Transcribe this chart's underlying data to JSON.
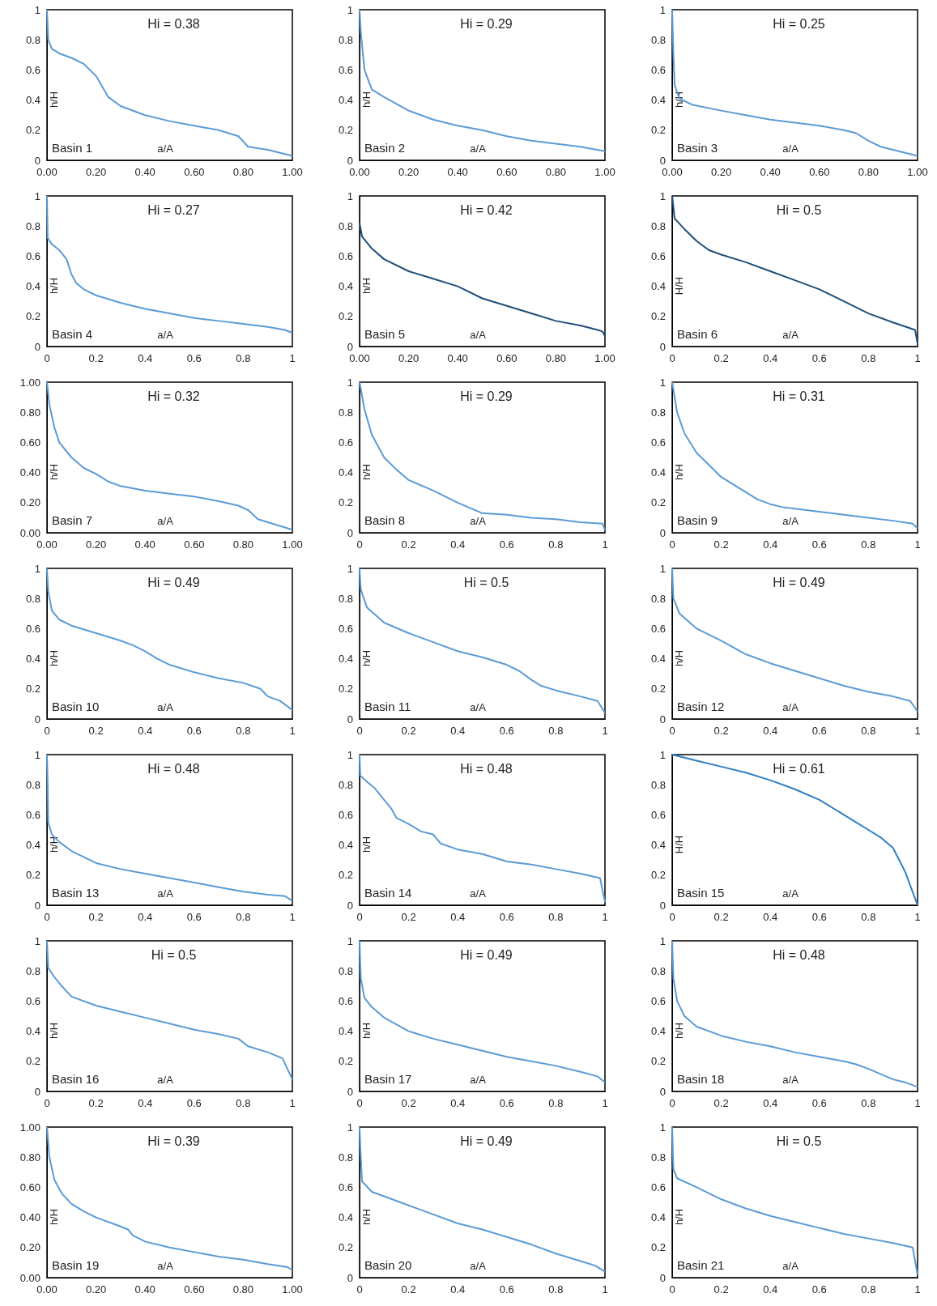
{
  "chart_data": [
    {
      "type": "line",
      "title": "Hi = 0.38",
      "annotations": [
        "Basin 1"
      ],
      "xlabel": "a/A",
      "ylabel": "h/H",
      "color": "#5b9bd5",
      "xlim": [
        0,
        1
      ],
      "ylim": [
        0,
        1
      ],
      "xticks": [
        {
          "value": 0,
          "label": "0.00"
        },
        {
          "value": 0.2,
          "label": "0.20"
        },
        {
          "value": 0.4,
          "label": "0.40"
        },
        {
          "value": 0.6,
          "label": "0.60"
        },
        {
          "value": 0.8,
          "label": "0.80"
        },
        {
          "value": 1,
          "label": "1.00"
        }
      ],
      "yticks": [
        0,
        0.2,
        0.4,
        0.6,
        0.8,
        1
      ],
      "x": [
        0,
        0.005,
        0.02,
        0.05,
        0.1,
        0.15,
        0.2,
        0.25,
        0.3,
        0.4,
        0.5,
        0.6,
        0.7,
        0.78,
        0.82,
        0.9,
        1
      ],
      "values": [
        1,
        0.8,
        0.74,
        0.71,
        0.68,
        0.64,
        0.56,
        0.42,
        0.36,
        0.3,
        0.26,
        0.23,
        0.2,
        0.16,
        0.09,
        0.07,
        0.03
      ]
    },
    {
      "type": "line",
      "title": "Hi = 0.29",
      "annotations": [
        "Basin 2"
      ],
      "xlabel": "a/A",
      "ylabel": "h/H",
      "color": "#5b9bd5",
      "xlim": [
        0,
        1
      ],
      "ylim": [
        0,
        1
      ],
      "xticks": [
        {
          "value": 0,
          "label": "0.00"
        },
        {
          "value": 0.2,
          "label": "0.20"
        },
        {
          "value": 0.4,
          "label": "0.40"
        },
        {
          "value": 0.6,
          "label": "0.60"
        },
        {
          "value": 0.8,
          "label": "0.80"
        },
        {
          "value": 1,
          "label": "1.00"
        }
      ],
      "yticks": [
        0,
        0.2,
        0.4,
        0.6,
        0.8,
        1
      ],
      "x": [
        0,
        0.005,
        0.02,
        0.05,
        0.1,
        0.2,
        0.3,
        0.4,
        0.5,
        0.6,
        0.7,
        0.8,
        0.9,
        1
      ],
      "values": [
        1,
        0.85,
        0.6,
        0.47,
        0.42,
        0.33,
        0.27,
        0.23,
        0.2,
        0.16,
        0.13,
        0.11,
        0.09,
        0.06
      ]
    },
    {
      "type": "line",
      "title": "Hi = 0.25",
      "annotations": [
        "Basin 3"
      ],
      "xlabel": "a/A",
      "ylabel": "h/H",
      "color": "#5b9bd5",
      "xlim": [
        0,
        1
      ],
      "ylim": [
        0,
        1
      ],
      "xticks": [
        {
          "value": 0,
          "label": "0.00"
        },
        {
          "value": 0.2,
          "label": "0.20"
        },
        {
          "value": 0.4,
          "label": "0.40"
        },
        {
          "value": 0.6,
          "label": "0.60"
        },
        {
          "value": 0.8,
          "label": "0.80"
        },
        {
          "value": 1,
          "label": "1.00"
        }
      ],
      "yticks": [
        0,
        0.2,
        0.4,
        0.6,
        0.8,
        1
      ],
      "x": [
        0,
        0.005,
        0.01,
        0.03,
        0.08,
        0.2,
        0.3,
        0.4,
        0.5,
        0.6,
        0.7,
        0.75,
        0.8,
        0.85,
        0.9,
        1
      ],
      "values": [
        1,
        0.7,
        0.5,
        0.41,
        0.37,
        0.33,
        0.3,
        0.27,
        0.25,
        0.23,
        0.2,
        0.18,
        0.13,
        0.09,
        0.07,
        0.03
      ]
    },
    {
      "type": "line",
      "title": "Hi = 0.27",
      "annotations": [
        "Basin 4"
      ],
      "xlabel": "a/A",
      "ylabel": "h/H",
      "color": "#5b9bd5",
      "xlim": [
        0,
        1
      ],
      "ylim": [
        0,
        1
      ],
      "xticks": [
        0,
        0.2,
        0.4,
        0.6,
        0.8,
        1
      ],
      "yticks": [
        0,
        0.2,
        0.4,
        0.6,
        0.8,
        1
      ],
      "x": [
        0,
        0.003,
        0.02,
        0.05,
        0.08,
        0.1,
        0.12,
        0.15,
        0.2,
        0.3,
        0.4,
        0.5,
        0.6,
        0.7,
        0.8,
        0.9,
        0.97,
        1
      ],
      "values": [
        1,
        0.72,
        0.68,
        0.64,
        0.58,
        0.48,
        0.42,
        0.38,
        0.34,
        0.29,
        0.25,
        0.22,
        0.19,
        0.17,
        0.15,
        0.13,
        0.11,
        0.09
      ]
    },
    {
      "type": "line",
      "title": "Hi = 0.42",
      "annotations": [
        "Basin 5"
      ],
      "xlabel": "a/A",
      "ylabel": "h/H",
      "color": "#1f4e79",
      "xlim": [
        0,
        1
      ],
      "ylim": [
        0,
        1
      ],
      "xticks": [
        {
          "value": 0,
          "label": "0.00"
        },
        {
          "value": 0.2,
          "label": "0.20"
        },
        {
          "value": 0.4,
          "label": "0.40"
        },
        {
          "value": 0.6,
          "label": "0.60"
        },
        {
          "value": 0.8,
          "label": "0.80"
        },
        {
          "value": 1,
          "label": "1.00"
        }
      ],
      "yticks": [
        0,
        0.2,
        0.4,
        0.6,
        0.8,
        1
      ],
      "x": [
        0,
        0.01,
        0.05,
        0.1,
        0.2,
        0.3,
        0.4,
        0.5,
        0.6,
        0.7,
        0.8,
        0.9,
        0.97,
        0.99,
        1
      ],
      "values": [
        0.82,
        0.73,
        0.65,
        0.58,
        0.5,
        0.45,
        0.4,
        0.32,
        0.27,
        0.22,
        0.17,
        0.14,
        0.11,
        0.1,
        0.07
      ]
    },
    {
      "type": "line",
      "title": "Hi = 0.5",
      "annotations": [
        "Basin 6"
      ],
      "xlabel": "a/A",
      "ylabel": "H/H",
      "color": "#1f4e79",
      "xlim": [
        0,
        1
      ],
      "ylim": [
        0,
        1
      ],
      "xticks": [
        0,
        0.2,
        0.4,
        0.6,
        0.8,
        1
      ],
      "yticks": [
        0,
        0.2,
        0.4,
        0.6,
        0.8,
        1
      ],
      "x": [
        0,
        0.01,
        0.05,
        0.1,
        0.15,
        0.2,
        0.3,
        0.4,
        0.5,
        0.6,
        0.7,
        0.8,
        0.9,
        0.99,
        1
      ],
      "values": [
        1,
        0.85,
        0.78,
        0.7,
        0.64,
        0.61,
        0.56,
        0.5,
        0.44,
        0.38,
        0.3,
        0.22,
        0.16,
        0.11,
        0.02
      ]
    },
    {
      "type": "line",
      "title": "Hi = 0.32",
      "annotations": [
        "Basin 7"
      ],
      "xlabel": "a/A",
      "ylabel": "h/H",
      "color": "#5b9bd5",
      "xlim": [
        0,
        1
      ],
      "ylim": [
        0,
        1
      ],
      "xticks": [
        {
          "value": 0,
          "label": "0.00"
        },
        {
          "value": 0.2,
          "label": "0.20"
        },
        {
          "value": 0.4,
          "label": "0.40"
        },
        {
          "value": 0.6,
          "label": "0.60"
        },
        {
          "value": 0.8,
          "label": "0.80"
        },
        {
          "value": 1,
          "label": "1.00"
        }
      ],
      "yticks": [
        {
          "value": 0,
          "label": "0.00"
        },
        {
          "value": 0.2,
          "label": "0.20"
        },
        {
          "value": 0.4,
          "label": "0.40"
        },
        {
          "value": 0.6,
          "label": "0.60"
        },
        {
          "value": 0.8,
          "label": "0.80"
        },
        {
          "value": 1,
          "label": "1.00"
        }
      ],
      "x": [
        0,
        0.01,
        0.03,
        0.05,
        0.1,
        0.15,
        0.2,
        0.25,
        0.3,
        0.4,
        0.5,
        0.6,
        0.7,
        0.78,
        0.82,
        0.86,
        0.9,
        1
      ],
      "values": [
        1,
        0.85,
        0.7,
        0.6,
        0.5,
        0.43,
        0.39,
        0.34,
        0.31,
        0.28,
        0.26,
        0.24,
        0.21,
        0.18,
        0.15,
        0.09,
        0.07,
        0.02
      ]
    },
    {
      "type": "line",
      "title": "Hi = 0.29",
      "annotations": [
        "Basin 8"
      ],
      "xlabel": "a/A",
      "ylabel": "h/H",
      "color": "#5b9bd5",
      "xlim": [
        0,
        1
      ],
      "ylim": [
        0,
        1
      ],
      "xticks": [
        0,
        0.2,
        0.4,
        0.6,
        0.8,
        1
      ],
      "yticks": [
        0,
        0.2,
        0.4,
        0.6,
        0.8,
        1
      ],
      "x": [
        0,
        0.02,
        0.05,
        0.1,
        0.15,
        0.2,
        0.3,
        0.4,
        0.5,
        0.6,
        0.7,
        0.8,
        0.9,
        0.99,
        1
      ],
      "values": [
        1,
        0.82,
        0.65,
        0.5,
        0.42,
        0.35,
        0.28,
        0.2,
        0.13,
        0.12,
        0.1,
        0.09,
        0.07,
        0.06,
        0.02
      ]
    },
    {
      "type": "line",
      "title": "Hi = 0.31",
      "annotations": [
        "Basin 9"
      ],
      "xlabel": "a/A",
      "ylabel": "h/H",
      "color": "#5b9bd5",
      "xlim": [
        0,
        1
      ],
      "ylim": [
        0,
        1
      ],
      "xticks": [
        0,
        0.2,
        0.4,
        0.6,
        0.8,
        1
      ],
      "yticks": [
        0,
        0.2,
        0.4,
        0.6,
        0.8,
        1
      ],
      "x": [
        0,
        0.02,
        0.05,
        0.1,
        0.15,
        0.2,
        0.3,
        0.35,
        0.4,
        0.45,
        0.5,
        0.6,
        0.7,
        0.8,
        0.9,
        0.98,
        1
      ],
      "values": [
        1,
        0.8,
        0.66,
        0.53,
        0.45,
        0.37,
        0.27,
        0.22,
        0.19,
        0.17,
        0.16,
        0.14,
        0.12,
        0.1,
        0.08,
        0.06,
        0.03
      ]
    },
    {
      "type": "line",
      "title": "Hi = 0.49",
      "annotations": [
        "Basin 10"
      ],
      "xlabel": "a/A",
      "ylabel": "h/H",
      "color": "#5b9bd5",
      "xlim": [
        0,
        1
      ],
      "ylim": [
        0,
        1
      ],
      "xticks": [
        0,
        0.2,
        0.4,
        0.6,
        0.8,
        1
      ],
      "yticks": [
        0,
        0.2,
        0.4,
        0.6,
        0.8,
        1
      ],
      "x": [
        0,
        0.005,
        0.02,
        0.05,
        0.1,
        0.2,
        0.3,
        0.35,
        0.4,
        0.45,
        0.5,
        0.6,
        0.7,
        0.8,
        0.87,
        0.9,
        0.95,
        1
      ],
      "values": [
        1,
        0.85,
        0.72,
        0.66,
        0.62,
        0.57,
        0.52,
        0.49,
        0.45,
        0.4,
        0.36,
        0.31,
        0.27,
        0.24,
        0.2,
        0.15,
        0.12,
        0.06
      ]
    },
    {
      "type": "line",
      "title": "Hi = 0.5",
      "annotations": [
        "Basin 11"
      ],
      "xlabel": "a/A",
      "ylabel": "h/H",
      "color": "#5b9bd5",
      "xlim": [
        0,
        1
      ],
      "ylim": [
        0,
        1
      ],
      "xticks": [
        0,
        0.2,
        0.4,
        0.6,
        0.8,
        1
      ],
      "yticks": [
        0,
        0.2,
        0.4,
        0.6,
        0.8,
        1
      ],
      "x": [
        0,
        0.005,
        0.03,
        0.1,
        0.2,
        0.3,
        0.4,
        0.5,
        0.6,
        0.65,
        0.7,
        0.74,
        0.8,
        0.9,
        0.97,
        1
      ],
      "values": [
        1,
        0.86,
        0.74,
        0.64,
        0.57,
        0.51,
        0.45,
        0.41,
        0.36,
        0.32,
        0.26,
        0.22,
        0.19,
        0.15,
        0.12,
        0.04
      ]
    },
    {
      "type": "line",
      "title": "Hi = 0.49",
      "annotations": [
        "Basin 12"
      ],
      "xlabel": "a/A",
      "ylabel": "h/H",
      "color": "#5b9bd5",
      "xlim": [
        0,
        1
      ],
      "ylim": [
        0,
        1
      ],
      "xticks": [
        0,
        0.2,
        0.4,
        0.6,
        0.8,
        1
      ],
      "yticks": [
        0,
        0.2,
        0.4,
        0.6,
        0.8,
        1
      ],
      "x": [
        0,
        0.005,
        0.03,
        0.1,
        0.2,
        0.3,
        0.4,
        0.5,
        0.6,
        0.7,
        0.8,
        0.9,
        0.97,
        1
      ],
      "values": [
        1,
        0.8,
        0.7,
        0.6,
        0.52,
        0.43,
        0.37,
        0.32,
        0.27,
        0.22,
        0.18,
        0.15,
        0.12,
        0.05
      ]
    },
    {
      "type": "line",
      "title": "Hi = 0.48",
      "annotations": [
        "Basin 13"
      ],
      "xlabel": "a/A",
      "ylabel": "h/H",
      "color": "#5b9bd5",
      "xlim": [
        0,
        1
      ],
      "ylim": [
        0,
        1
      ],
      "xticks": [
        0,
        0.2,
        0.4,
        0.6,
        0.8,
        1
      ],
      "yticks": [
        0,
        0.2,
        0.4,
        0.6,
        0.8,
        1
      ],
      "x": [
        0,
        0.003,
        0.005,
        0.02,
        0.05,
        0.1,
        0.2,
        0.3,
        0.4,
        0.5,
        0.6,
        0.7,
        0.8,
        0.9,
        0.97,
        1
      ],
      "values": [
        1,
        0.8,
        0.55,
        0.47,
        0.42,
        0.36,
        0.28,
        0.24,
        0.21,
        0.18,
        0.15,
        0.12,
        0.09,
        0.07,
        0.06,
        0.03
      ]
    },
    {
      "type": "line",
      "title": "Hi = 0.48",
      "annotations": [
        "Basin 14"
      ],
      "xlabel": "a/A",
      "ylabel": "h/H",
      "color": "#5b9bd5",
      "xlim": [
        0,
        1
      ],
      "ylim": [
        0,
        1
      ],
      "xticks": [
        0,
        0.2,
        0.4,
        0.6,
        0.8,
        1
      ],
      "yticks": [
        0,
        0.2,
        0.4,
        0.6,
        0.8,
        1
      ],
      "x": [
        0,
        0.003,
        0.03,
        0.06,
        0.1,
        0.13,
        0.15,
        0.2,
        0.25,
        0.3,
        0.33,
        0.4,
        0.5,
        0.6,
        0.7,
        0.8,
        0.9,
        0.98,
        1
      ],
      "values": [
        1,
        0.86,
        0.82,
        0.78,
        0.7,
        0.64,
        0.58,
        0.54,
        0.49,
        0.47,
        0.41,
        0.37,
        0.34,
        0.29,
        0.27,
        0.24,
        0.21,
        0.18,
        0.02
      ]
    },
    {
      "type": "line",
      "title": "Hi = 0.61",
      "annotations": [
        "Basin 15"
      ],
      "xlabel": "a/A",
      "ylabel": "H/H",
      "color": "#2f7fc1",
      "xlim": [
        0,
        1
      ],
      "ylim": [
        0,
        1
      ],
      "xticks": [
        0,
        0.2,
        0.4,
        0.6,
        0.8,
        1
      ],
      "yticks": [
        0,
        0.2,
        0.4,
        0.6,
        0.8,
        1
      ],
      "x": [
        0,
        0.1,
        0.2,
        0.3,
        0.4,
        0.5,
        0.6,
        0.7,
        0.8,
        0.85,
        0.9,
        0.95,
        1
      ],
      "values": [
        1,
        0.96,
        0.92,
        0.88,
        0.83,
        0.77,
        0.7,
        0.6,
        0.5,
        0.45,
        0.38,
        0.22,
        0
      ]
    },
    {
      "type": "line",
      "title": "Hi = 0.5",
      "annotations": [
        "Basin 16"
      ],
      "xlabel": "a/A",
      "ylabel": "h/H",
      "color": "#5b9bd5",
      "xlim": [
        0,
        1
      ],
      "ylim": [
        0,
        1
      ],
      "xticks": [
        0,
        0.2,
        0.4,
        0.6,
        0.8,
        1
      ],
      "yticks": [
        0,
        0.2,
        0.4,
        0.6,
        0.8,
        1
      ],
      "x": [
        0,
        0.005,
        0.03,
        0.06,
        0.1,
        0.2,
        0.3,
        0.4,
        0.5,
        0.6,
        0.7,
        0.78,
        0.82,
        0.9,
        0.96,
        1
      ],
      "values": [
        1,
        0.82,
        0.76,
        0.7,
        0.63,
        0.57,
        0.53,
        0.49,
        0.45,
        0.41,
        0.38,
        0.35,
        0.3,
        0.26,
        0.22,
        0.08
      ]
    },
    {
      "type": "line",
      "title": "Hi = 0.49",
      "annotations": [
        "Basin 17"
      ],
      "xlabel": "a/A",
      "ylabel": "h/H",
      "color": "#5b9bd5",
      "xlim": [
        0,
        1
      ],
      "ylim": [
        0,
        1
      ],
      "xticks": [
        0,
        0.2,
        0.4,
        0.6,
        0.8,
        1
      ],
      "yticks": [
        0,
        0.2,
        0.4,
        0.6,
        0.8,
        1
      ],
      "x": [
        0,
        0.005,
        0.02,
        0.05,
        0.1,
        0.2,
        0.3,
        0.4,
        0.5,
        0.6,
        0.7,
        0.8,
        0.9,
        0.97,
        1
      ],
      "values": [
        1,
        0.75,
        0.62,
        0.56,
        0.49,
        0.4,
        0.35,
        0.31,
        0.27,
        0.23,
        0.2,
        0.17,
        0.13,
        0.1,
        0.06
      ]
    },
    {
      "type": "line",
      "title": "Hi = 0.48",
      "annotations": [
        "Basin 18"
      ],
      "xlabel": "a/A",
      "ylabel": "h/H",
      "color": "#5b9bd5",
      "xlim": [
        0,
        1
      ],
      "ylim": [
        0,
        1
      ],
      "xticks": [
        0,
        0.2,
        0.4,
        0.6,
        0.8,
        1
      ],
      "yticks": [
        0,
        0.2,
        0.4,
        0.6,
        0.8,
        1
      ],
      "x": [
        0,
        0.005,
        0.02,
        0.05,
        0.1,
        0.2,
        0.3,
        0.4,
        0.5,
        0.6,
        0.7,
        0.75,
        0.8,
        0.9,
        0.95,
        1
      ],
      "values": [
        1,
        0.75,
        0.6,
        0.5,
        0.43,
        0.37,
        0.33,
        0.3,
        0.26,
        0.23,
        0.2,
        0.18,
        0.15,
        0.08,
        0.06,
        0.03
      ]
    },
    {
      "type": "line",
      "title": "Hi = 0.39",
      "annotations": [
        "Basin 19"
      ],
      "xlabel": "a/A",
      "ylabel": "h/H",
      "color": "#5b9bd5",
      "xlim": [
        0,
        1
      ],
      "ylim": [
        0,
        1
      ],
      "xticks": [
        {
          "value": 0,
          "label": "0.00"
        },
        {
          "value": 0.2,
          "label": "0.20"
        },
        {
          "value": 0.4,
          "label": "0.40"
        },
        {
          "value": 0.6,
          "label": "0.60"
        },
        {
          "value": 0.8,
          "label": "0.80"
        },
        {
          "value": 1,
          "label": "1.00"
        }
      ],
      "yticks": [
        {
          "value": 0,
          "label": "0.00"
        },
        {
          "value": 0.2,
          "label": "0.20"
        },
        {
          "value": 0.4,
          "label": "0.40"
        },
        {
          "value": 0.6,
          "label": "0.60"
        },
        {
          "value": 0.8,
          "label": "0.80"
        },
        {
          "value": 1,
          "label": "1.00"
        }
      ],
      "x": [
        0,
        0.01,
        0.03,
        0.06,
        0.1,
        0.15,
        0.2,
        0.3,
        0.33,
        0.35,
        0.4,
        0.5,
        0.6,
        0.7,
        0.8,
        0.9,
        0.98,
        1
      ],
      "values": [
        1,
        0.8,
        0.65,
        0.56,
        0.49,
        0.44,
        0.4,
        0.34,
        0.32,
        0.28,
        0.24,
        0.2,
        0.17,
        0.14,
        0.12,
        0.09,
        0.07,
        0.05
      ]
    },
    {
      "type": "line",
      "title": "Hi = 0.49",
      "annotations": [
        "Basin 20"
      ],
      "xlabel": "a/A",
      "ylabel": "h/H",
      "color": "#5b9bd5",
      "xlim": [
        0,
        1
      ],
      "ylim": [
        0,
        1
      ],
      "xticks": [
        0,
        0.2,
        0.4,
        0.6,
        0.8,
        1
      ],
      "yticks": [
        0,
        0.2,
        0.4,
        0.6,
        0.8,
        1
      ],
      "x": [
        0,
        0.005,
        0.01,
        0.05,
        0.1,
        0.2,
        0.3,
        0.4,
        0.5,
        0.6,
        0.7,
        0.8,
        0.9,
        0.96,
        1
      ],
      "values": [
        1,
        0.8,
        0.64,
        0.57,
        0.54,
        0.48,
        0.42,
        0.36,
        0.32,
        0.27,
        0.22,
        0.16,
        0.11,
        0.08,
        0.04
      ]
    },
    {
      "type": "line",
      "title": "Hi = 0.5",
      "annotations": [
        "Basin 21"
      ],
      "xlabel": "a/A",
      "ylabel": "h/H",
      "color": "#5b9bd5",
      "xlim": [
        0,
        1
      ],
      "ylim": [
        0,
        1
      ],
      "xticks": [
        0,
        0.2,
        0.4,
        0.6,
        0.8,
        1
      ],
      "yticks": [
        0,
        0.2,
        0.4,
        0.6,
        0.8,
        1
      ],
      "x": [
        0,
        0.005,
        0.02,
        0.1,
        0.2,
        0.3,
        0.4,
        0.5,
        0.6,
        0.7,
        0.8,
        0.9,
        0.98,
        1
      ],
      "values": [
        1,
        0.72,
        0.66,
        0.6,
        0.52,
        0.46,
        0.41,
        0.37,
        0.33,
        0.29,
        0.26,
        0.23,
        0.2,
        0.02
      ]
    }
  ]
}
